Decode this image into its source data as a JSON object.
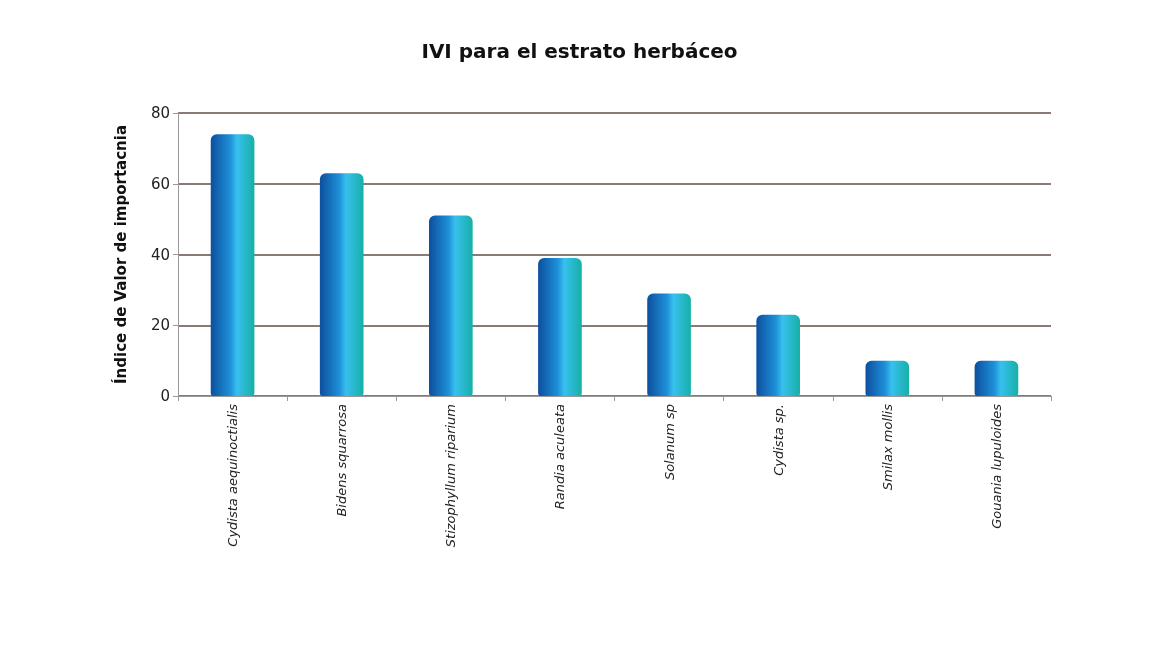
{
  "chart_data": {
    "type": "bar",
    "title": "IVI para el estrato herbáceo",
    "ylabel": "Índice de Valor de importacnia",
    "categories": [
      "Cydista aequinoctialis",
      "Bidens squarrosa",
      "Stizophyllum riparium",
      "Randia aculeata",
      "Solanum sp",
      "Cydista sp.",
      "Smilax mollis",
      "Gouania lupuloides"
    ],
    "values": [
      74,
      63,
      51,
      39,
      29,
      23,
      10,
      10
    ],
    "color": "#1e90d8",
    "ylim": [
      0,
      80
    ],
    "yticks": [
      0,
      20,
      40,
      60,
      80
    ],
    "grid": true
  }
}
